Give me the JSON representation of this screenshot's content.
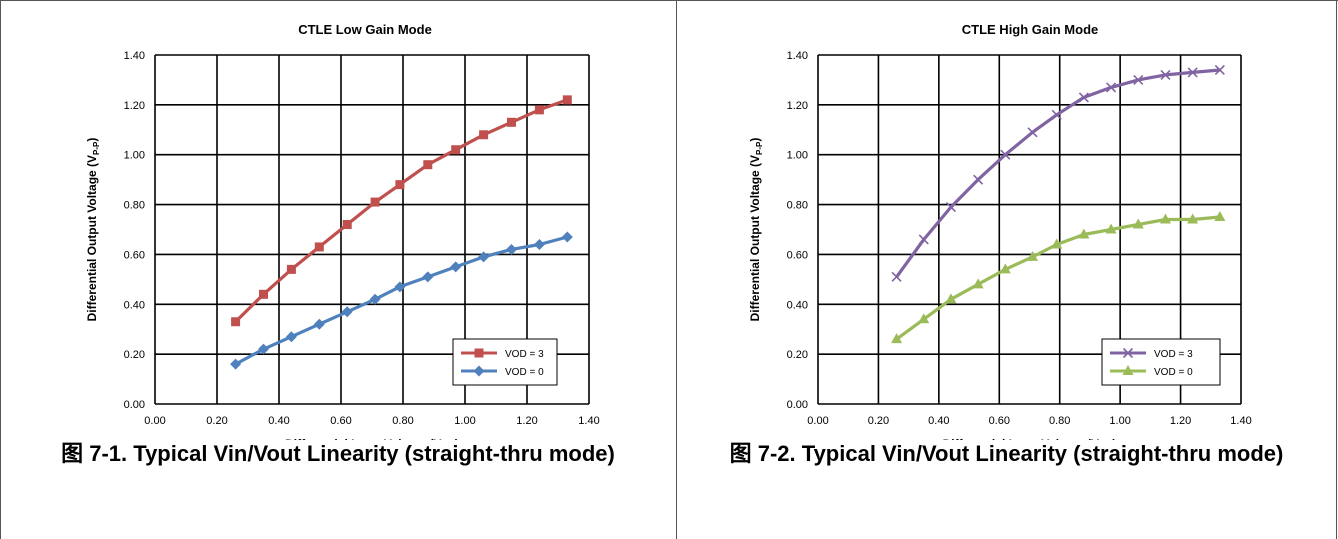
{
  "chart_data": [
    {
      "type": "line",
      "title": "CTLE Low Gain Mode",
      "xlabel_main": "Differential Input Voltage (V",
      "xlabel_sub": "P-P",
      "xlabel_end": ")",
      "ylabel_main": "Differential Output Voltage (V",
      "ylabel_sub": "P-P",
      "ylabel_end": ")",
      "xlim": [
        0,
        1.4
      ],
      "ylim": [
        0,
        1.4
      ],
      "xticks": [
        "0.00",
        "0.20",
        "0.40",
        "0.60",
        "0.80",
        "1.00",
        "1.20",
        "1.40"
      ],
      "yticks": [
        "0.00",
        "0.20",
        "0.40",
        "0.60",
        "0.80",
        "1.00",
        "1.20",
        "1.40"
      ],
      "grid": true,
      "legend_position": "bottom-right",
      "series": [
        {
          "name": "VOD = 3",
          "color": "#C0504D",
          "marker": "square",
          "x": [
            0.26,
            0.35,
            0.44,
            0.53,
            0.62,
            0.71,
            0.79,
            0.88,
            0.97,
            1.06,
            1.15,
            1.24,
            1.33
          ],
          "y": [
            0.33,
            0.44,
            0.54,
            0.63,
            0.72,
            0.81,
            0.88,
            0.96,
            1.02,
            1.08,
            1.13,
            1.18,
            1.22
          ]
        },
        {
          "name": "VOD = 0",
          "color": "#4F81BD",
          "marker": "diamond",
          "x": [
            0.26,
            0.35,
            0.44,
            0.53,
            0.62,
            0.71,
            0.79,
            0.88,
            0.97,
            1.06,
            1.15,
            1.24,
            1.33
          ],
          "y": [
            0.16,
            0.22,
            0.27,
            0.32,
            0.37,
            0.42,
            0.47,
            0.51,
            0.55,
            0.59,
            0.62,
            0.64,
            0.67
          ]
        }
      ]
    },
    {
      "type": "line",
      "title": "CTLE High Gain Mode",
      "xlabel_main": "Differential Input Voltage (V",
      "xlabel_sub": "P-P",
      "xlabel_end": ")",
      "ylabel_main": "Differential Output Voltage (V",
      "ylabel_sub": "P-P",
      "ylabel_end": ")",
      "xlim": [
        0,
        1.4
      ],
      "ylim": [
        0,
        1.4
      ],
      "xticks": [
        "0.00",
        "0.20",
        "0.40",
        "0.60",
        "0.80",
        "1.00",
        "1.20",
        "1.40"
      ],
      "yticks": [
        "0.00",
        "0.20",
        "0.40",
        "0.60",
        "0.80",
        "1.00",
        "1.20",
        "1.40"
      ],
      "grid": true,
      "legend_position": "bottom-right",
      "series": [
        {
          "name": "VOD = 3",
          "color": "#8064A2",
          "marker": "x",
          "x": [
            0.26,
            0.35,
            0.44,
            0.53,
            0.62,
            0.71,
            0.79,
            0.88,
            0.97,
            1.06,
            1.15,
            1.24,
            1.33
          ],
          "y": [
            0.51,
            0.66,
            0.79,
            0.9,
            1.0,
            1.09,
            1.16,
            1.23,
            1.27,
            1.3,
            1.32,
            1.33,
            1.34
          ]
        },
        {
          "name": "VOD = 0",
          "color": "#9BBB59",
          "marker": "triangle",
          "x": [
            0.26,
            0.35,
            0.44,
            0.53,
            0.62,
            0.71,
            0.79,
            0.88,
            0.97,
            1.06,
            1.15,
            1.24,
            1.33
          ],
          "y": [
            0.26,
            0.34,
            0.42,
            0.48,
            0.54,
            0.59,
            0.64,
            0.68,
            0.7,
            0.72,
            0.74,
            0.74,
            0.75
          ]
        }
      ]
    }
  ],
  "captions": [
    "图 7-1. Typical Vin/Vout Linearity (straight-thru mode)",
    "图 7-2. Typical Vin/Vout Linearity (straight-thru mode)"
  ]
}
